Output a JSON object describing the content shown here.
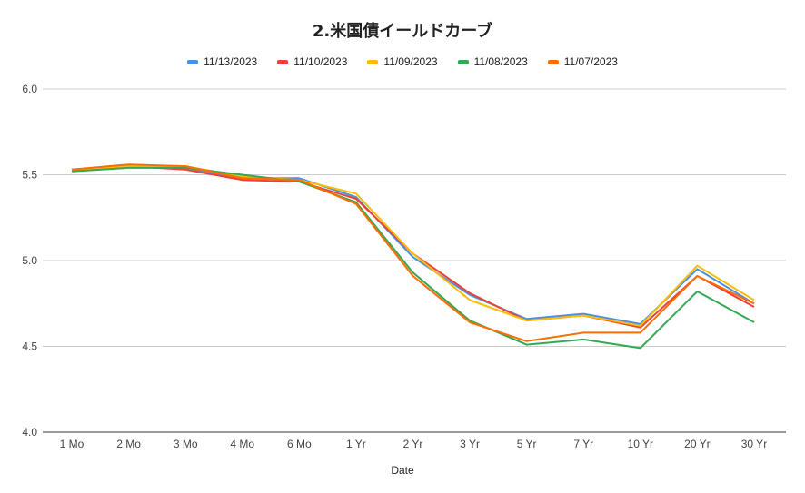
{
  "chart_data": {
    "type": "line",
    "title": "2.米国債イールドカーブ",
    "xlabel": "Date",
    "ylabel": "",
    "ylim": [
      4.0,
      6.0
    ],
    "yticks": [
      "4.0",
      "4.5",
      "5.0",
      "5.5",
      "6.0"
    ],
    "yticks_values": [
      4.0,
      4.5,
      5.0,
      5.5,
      6.0
    ],
    "grid": true,
    "legend_position": "top",
    "categories": [
      "1 Mo",
      "2 Mo",
      "3 Mo",
      "4 Mo",
      "6 Mo",
      "1 Yr",
      "2 Yr",
      "3 Yr",
      "5 Yr",
      "7 Yr",
      "10 Yr",
      "20 Yr",
      "30 Yr"
    ],
    "series": [
      {
        "name": "11/13/2023",
        "color": "#4a90e2",
        "values": [
          5.53,
          5.55,
          5.54,
          5.48,
          5.48,
          5.37,
          5.02,
          4.8,
          4.66,
          4.69,
          4.63,
          4.95,
          4.75
        ]
      },
      {
        "name": "11/10/2023",
        "color": "#ea4335",
        "values": [
          5.53,
          5.55,
          5.53,
          5.47,
          5.46,
          5.36,
          5.04,
          4.81,
          4.65,
          4.68,
          4.61,
          4.91,
          4.73
        ]
      },
      {
        "name": "11/09/2023",
        "color": "#fbbc04",
        "values": [
          5.53,
          5.55,
          5.55,
          5.49,
          5.47,
          5.39,
          5.04,
          4.77,
          4.65,
          4.68,
          4.62,
          4.97,
          4.77
        ]
      },
      {
        "name": "11/08/2023",
        "color": "#34a853",
        "values": [
          5.52,
          5.54,
          5.54,
          5.5,
          5.46,
          5.34,
          4.93,
          4.65,
          4.51,
          4.54,
          4.49,
          4.82,
          4.64
        ]
      },
      {
        "name": "11/07/2023",
        "color": "#ff6d01",
        "values": [
          5.53,
          5.56,
          5.55,
          5.48,
          5.47,
          5.33,
          4.91,
          4.64,
          4.53,
          4.58,
          4.58,
          4.91,
          4.75
        ]
      }
    ]
  }
}
